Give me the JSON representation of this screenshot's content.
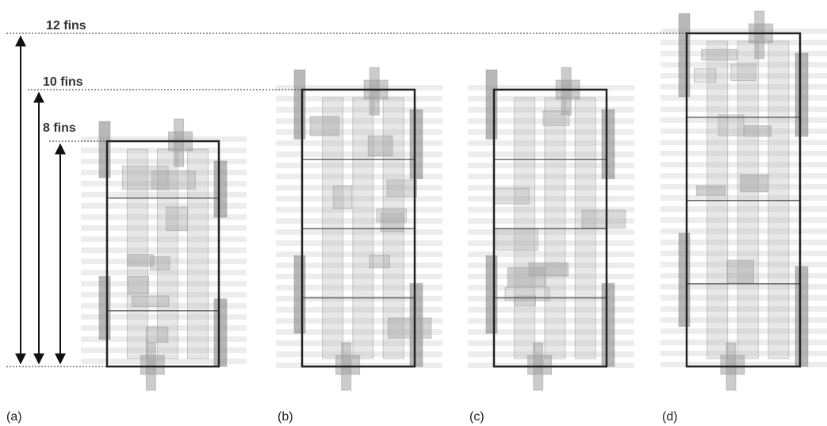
{
  "height_labels": [
    "12 fins",
    "10 fins",
    "8 fins"
  ],
  "panels": [
    "(a)",
    "(b)",
    "(c)",
    "(d)"
  ]
}
